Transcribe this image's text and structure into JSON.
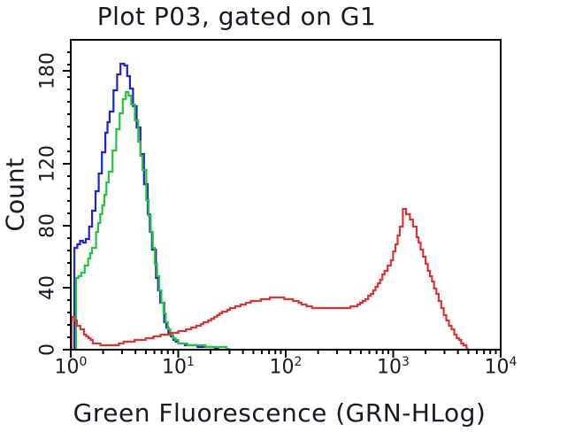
{
  "title": "Plot P03, gated on G1",
  "axes": {
    "x": {
      "label": "Green Fluorescence (GRN-HLog)",
      "scale": "log",
      "tick_labels": [
        {
          "base": "10",
          "exp": "0"
        },
        {
          "base": "10",
          "exp": "1"
        },
        {
          "base": "10",
          "exp": "2"
        },
        {
          "base": "10",
          "exp": "3"
        },
        {
          "base": "10",
          "exp": "4"
        }
      ],
      "min": 1,
      "max": 10000
    },
    "y": {
      "label": "Count",
      "scale": "linear",
      "tick_labels": [
        "0",
        "40",
        "80",
        "120",
        "180"
      ],
      "tick_values": [
        0,
        40,
        80,
        120,
        180
      ],
      "minor_step": 8,
      "min": 0,
      "max": 200
    }
  },
  "colors": {
    "background": "#ffffff",
    "axis": "#000000",
    "text": "#191923",
    "blue_series": "#2222cc",
    "green_series": "#22c43a",
    "red_series": "#da3434"
  },
  "chart_data": {
    "type": "line",
    "subtype": "flow-cytometry-histogram-overlay",
    "title": "Plot P03, gated on G1",
    "xlabel": "Green Fluorescence (GRN-HLog)",
    "ylabel": "Count",
    "x_scale": "log10",
    "xlim": [
      1,
      10000
    ],
    "ylim": [
      0,
      200
    ],
    "grid": false,
    "legend": "none",
    "series": [
      {
        "name": "blue",
        "color": "#2222cc",
        "points": [
          [
            1.08,
            0
          ],
          [
            1.08,
            66
          ],
          [
            1.15,
            68
          ],
          [
            1.22,
            70
          ],
          [
            1.3,
            69
          ],
          [
            1.38,
            72
          ],
          [
            1.48,
            80
          ],
          [
            1.58,
            90
          ],
          [
            1.7,
            102
          ],
          [
            1.82,
            114
          ],
          [
            1.95,
            127
          ],
          [
            2.1,
            140
          ],
          [
            2.3,
            154
          ],
          [
            2.5,
            168
          ],
          [
            2.7,
            178
          ],
          [
            2.9,
            184
          ],
          [
            3.0,
            185
          ],
          [
            3.15,
            183
          ],
          [
            3.35,
            177
          ],
          [
            3.55,
            169
          ],
          [
            3.8,
            157
          ],
          [
            4.1,
            143
          ],
          [
            4.45,
            126
          ],
          [
            4.8,
            107
          ],
          [
            5.2,
            87
          ],
          [
            5.7,
            65
          ],
          [
            6.2,
            46
          ],
          [
            6.8,
            30
          ],
          [
            7.4,
            18
          ],
          [
            8.1,
            11
          ],
          [
            9.0,
            6
          ],
          [
            10,
            4
          ],
          [
            11.5,
            3
          ],
          [
            13.5,
            2.5
          ],
          [
            16,
            2
          ],
          [
            19,
            1.5
          ],
          [
            22,
            1
          ],
          [
            24,
            0.5
          ]
        ]
      },
      {
        "name": "green",
        "color": "#22c43a",
        "points": [
          [
            1.12,
            0
          ],
          [
            1.12,
            46
          ],
          [
            1.18,
            48
          ],
          [
            1.25,
            50
          ],
          [
            1.35,
            54
          ],
          [
            1.45,
            59
          ],
          [
            1.58,
            66
          ],
          [
            1.72,
            76
          ],
          [
            1.88,
            87
          ],
          [
            2.05,
            100
          ],
          [
            2.25,
            115
          ],
          [
            2.45,
            129
          ],
          [
            2.65,
            142
          ],
          [
            2.85,
            153
          ],
          [
            3.05,
            162
          ],
          [
            3.25,
            166
          ],
          [
            3.45,
            164
          ],
          [
            3.65,
            158
          ],
          [
            3.95,
            148
          ],
          [
            4.25,
            134
          ],
          [
            4.65,
            116
          ],
          [
            5.05,
            97
          ],
          [
            5.55,
            76
          ],
          [
            6.05,
            56
          ],
          [
            6.65,
            38
          ],
          [
            7.3,
            23
          ],
          [
            8.0,
            13
          ],
          [
            8.9,
            7
          ],
          [
            10,
            4.5
          ],
          [
            11.5,
            3.5
          ],
          [
            13.5,
            3
          ],
          [
            16,
            2.5
          ],
          [
            19,
            2
          ],
          [
            22,
            2
          ],
          [
            25,
            1.5
          ],
          [
            28,
            1
          ],
          [
            30,
            0.5
          ]
        ]
      },
      {
        "name": "red",
        "color": "#da3434",
        "points": [
          [
            1.02,
            0
          ],
          [
            1.02,
            21
          ],
          [
            1.07,
            19
          ],
          [
            1.14,
            16
          ],
          [
            1.23,
            13
          ],
          [
            1.33,
            10
          ],
          [
            1.46,
            7
          ],
          [
            1.6,
            4.5
          ],
          [
            1.78,
            3.5
          ],
          [
            2.0,
            3
          ],
          [
            2.4,
            3
          ],
          [
            2.8,
            3.5
          ],
          [
            3.1,
            5
          ],
          [
            3.7,
            5.5
          ],
          [
            4.4,
            6.5
          ],
          [
            5.3,
            7.5
          ],
          [
            6.5,
            9
          ],
          [
            8.0,
            10
          ],
          [
            10,
            11.5
          ],
          [
            12.5,
            13.5
          ],
          [
            15.5,
            16
          ],
          [
            19,
            19
          ],
          [
            23,
            22.5
          ],
          [
            27,
            25
          ],
          [
            32,
            27
          ],
          [
            38,
            29
          ],
          [
            45,
            30.5
          ],
          [
            55,
            32
          ],
          [
            67,
            33
          ],
          [
            80,
            33.5
          ],
          [
            97,
            33
          ],
          [
            117,
            32
          ],
          [
            140,
            29.5
          ],
          [
            165,
            27.5
          ],
          [
            200,
            27
          ],
          [
            260,
            27
          ],
          [
            330,
            27
          ],
          [
            400,
            27.5
          ],
          [
            440,
            28
          ],
          [
            520,
            31
          ],
          [
            620,
            36
          ],
          [
            720,
            43
          ],
          [
            830,
            51
          ],
          [
            950,
            58
          ],
          [
            1050,
            68
          ],
          [
            1150,
            80
          ],
          [
            1230,
            91
          ],
          [
            1320,
            88
          ],
          [
            1430,
            84
          ],
          [
            1530,
            80
          ],
          [
            1650,
            73
          ],
          [
            1800,
            65
          ],
          [
            2000,
            55
          ],
          [
            2200,
            47
          ],
          [
            2400,
            40
          ],
          [
            2650,
            31
          ],
          [
            2950,
            22
          ],
          [
            3300,
            16
          ],
          [
            3700,
            10
          ],
          [
            4100,
            6
          ],
          [
            4500,
            3
          ],
          [
            4800,
            1
          ],
          [
            4900,
            0
          ]
        ]
      }
    ]
  }
}
